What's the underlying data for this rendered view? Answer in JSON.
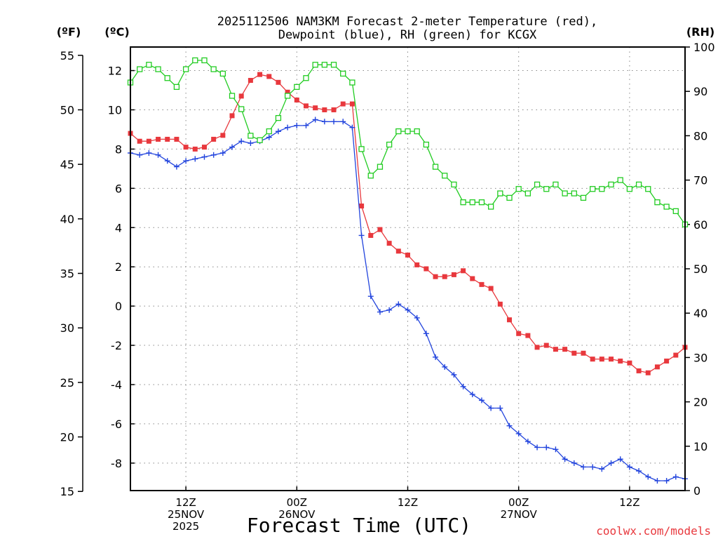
{
  "chart_data": {
    "type": "line",
    "title_line1": "2025112506 NAM3KM Forecast 2-meter Temperature (red),",
    "title_line2": "Dewpoint (blue), RH (green) for KCGX",
    "unit_left_f": "(ºF)",
    "unit_left_c": "(ºC)",
    "unit_right": "(RH)",
    "xlabel": "Forecast Time (UTC)",
    "credit": "coolwx.com/models",
    "xlim": [
      0,
      60
    ],
    "c_lim": [
      -9.4,
      13.2
    ],
    "rh_lim": [
      0,
      100
    ],
    "f_ticks": [
      "55",
      "50",
      "45",
      "40",
      "35",
      "30",
      "25",
      "20",
      "15"
    ],
    "f_tick_values": [
      55,
      50,
      45,
      40,
      35,
      30,
      25,
      20,
      15
    ],
    "c_ticks": [
      "12",
      "10",
      "8",
      "6",
      "4",
      "2",
      "0",
      "-2",
      "-4",
      "-6",
      "-8"
    ],
    "c_tick_values": [
      12,
      10,
      8,
      6,
      4,
      2,
      0,
      -2,
      -4,
      -6,
      -8
    ],
    "rh_ticks": [
      "100",
      "90",
      "80",
      "70",
      "60",
      "50",
      "40",
      "30",
      "20",
      "10",
      "0"
    ],
    "rh_tick_values": [
      100,
      90,
      80,
      70,
      60,
      50,
      40,
      30,
      20,
      10,
      0
    ],
    "x_ticks": [
      {
        "x": 6,
        "lines": [
          "12Z",
          "25NOV",
          "2025"
        ]
      },
      {
        "x": 18,
        "lines": [
          "00Z",
          "26NOV"
        ]
      },
      {
        "x": 30,
        "lines": [
          "12Z"
        ]
      },
      {
        "x": 42,
        "lines": [
          "00Z",
          "27NOV"
        ]
      },
      {
        "x": 54,
        "lines": [
          "12Z"
        ]
      }
    ],
    "series": [
      {
        "name": "Temperature",
        "color": "#e8383d",
        "marker": "filled-square",
        "axis": "c",
        "values": [
          8.8,
          8.4,
          8.4,
          8.5,
          8.5,
          8.5,
          8.1,
          8.0,
          8.1,
          8.5,
          8.7,
          9.7,
          10.7,
          11.5,
          11.8,
          11.7,
          11.4,
          10.9,
          10.5,
          10.2,
          10.1,
          10.0,
          10.0,
          10.3,
          10.3,
          5.1,
          3.6,
          3.9,
          3.2,
          2.8,
          2.6,
          2.1,
          1.9,
          1.5,
          1.5,
          1.6,
          1.8,
          1.4,
          1.1,
          0.9,
          0.1,
          -0.7,
          -1.4,
          -1.5,
          -2.1,
          -2.0,
          -2.2,
          -2.2,
          -2.4,
          -2.4,
          -2.7,
          -2.7,
          -2.7,
          -2.8,
          -2.9,
          -3.3,
          -3.4,
          -3.1,
          -2.8,
          -2.5,
          -2.1
        ]
      },
      {
        "name": "Dewpoint",
        "color": "#2244dd",
        "marker": "plus",
        "axis": "c",
        "values": [
          7.8,
          7.7,
          7.8,
          7.7,
          7.4,
          7.1,
          7.4,
          7.5,
          7.6,
          7.7,
          7.8,
          8.1,
          8.4,
          8.3,
          8.4,
          8.6,
          8.9,
          9.1,
          9.2,
          9.2,
          9.5,
          9.4,
          9.4,
          9.4,
          9.1,
          3.6,
          0.5,
          -0.3,
          -0.2,
          0.1,
          -0.2,
          -0.6,
          -1.4,
          -2.6,
          -3.1,
          -3.5,
          -4.1,
          -4.5,
          -4.8,
          -5.2,
          -5.2,
          -6.1,
          -6.5,
          -6.9,
          -7.2,
          -7.2,
          -7.3,
          -7.8,
          -8.0,
          -8.2,
          -8.2,
          -8.3,
          -8.0,
          -7.8,
          -8.2,
          -8.4,
          -8.7,
          -8.9,
          -8.9,
          -8.7,
          -8.8
        ]
      },
      {
        "name": "Relative Humidity",
        "color": "#22cc22",
        "marker": "open-square",
        "axis": "rh",
        "values": [
          92,
          95,
          96,
          95,
          93,
          91,
          95,
          97,
          97,
          95,
          94,
          89,
          86,
          80,
          79,
          81,
          84,
          89,
          91,
          93,
          96,
          96,
          96,
          94,
          92,
          77,
          71,
          73,
          78,
          81,
          81,
          81,
          78,
          73,
          71,
          69,
          65,
          65,
          65,
          64,
          67,
          66,
          68,
          67,
          69,
          68,
          69,
          67,
          67,
          66,
          68,
          68,
          69,
          70,
          68,
          69,
          68,
          65,
          64,
          63,
          60
        ]
      }
    ]
  }
}
